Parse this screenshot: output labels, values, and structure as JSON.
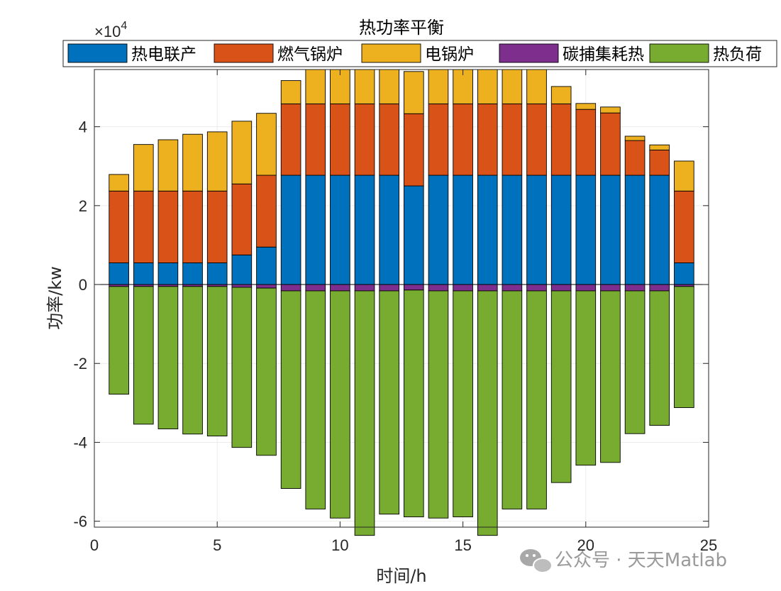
{
  "chart_data": {
    "type": "bar",
    "stacked": true,
    "title": "热功率平衡",
    "xlabel": "时间/h",
    "ylabel": "功率/kw",
    "y_exponent_base": "×10",
    "y_exponent_power": "4",
    "xlim": [
      0,
      25
    ],
    "ylim": [
      -61500,
      54500
    ],
    "y_scale_factor": 10000,
    "xticks": [
      0,
      5,
      10,
      15,
      20,
      25
    ],
    "yticks": [
      -60000,
      -40000,
      -20000,
      0,
      20000,
      40000
    ],
    "ytick_labels": [
      "-6",
      "-4",
      "-2",
      "0",
      "2",
      "4"
    ],
    "grid": true,
    "legend_location": "top-outside",
    "x": [
      1,
      2,
      3,
      4,
      5,
      6,
      7,
      8,
      9,
      10,
      11,
      12,
      13,
      14,
      15,
      16,
      17,
      18,
      19,
      20,
      21,
      22,
      23,
      24
    ],
    "series": [
      {
        "name": "热电联产",
        "color": "#0072BD",
        "values": [
          5500,
          5500,
          5500,
          5500,
          5500,
          7500,
          9500,
          27700,
          27700,
          27700,
          27700,
          27700,
          25000,
          27700,
          27700,
          27700,
          27700,
          27700,
          27700,
          27700,
          27700,
          27700,
          27700,
          5500
        ]
      },
      {
        "name": "燃气锅炉",
        "color": "#D95319",
        "values": [
          18200,
          18200,
          18200,
          18200,
          18200,
          18000,
          18200,
          18100,
          18100,
          18100,
          18100,
          18100,
          18300,
          18100,
          18100,
          18100,
          18100,
          18100,
          18100,
          16700,
          15800,
          8800,
          6400,
          18200
        ]
      },
      {
        "name": "电锅炉",
        "color": "#EDB120",
        "values": [
          4200,
          11800,
          13000,
          14400,
          15000,
          15900,
          15700,
          5900,
          8700,
          8700,
          8700,
          8700,
          10700,
          8700,
          8700,
          8700,
          8700,
          8700,
          4400,
          1500,
          1500,
          1100,
          1300,
          7600
        ]
      },
      {
        "name": "碳捕集耗热",
        "color": "#7E2F8E",
        "values": [
          -500,
          -500,
          -500,
          -500,
          -500,
          -700,
          -900,
          -1600,
          -1600,
          -1600,
          -1600,
          -1600,
          -1400,
          -1600,
          -1600,
          -1600,
          -1600,
          -1600,
          -1600,
          -1600,
          -1600,
          -1600,
          -1600,
          -500
        ]
      },
      {
        "name": "热负荷",
        "color": "#77AC30",
        "values": [
          -27300,
          -34900,
          -36100,
          -37400,
          -37900,
          -40600,
          -42400,
          -50100,
          -55300,
          -57600,
          -62000,
          -56600,
          -57500,
          -57600,
          -57300,
          -62000,
          -55300,
          -55300,
          -48600,
          -44200,
          -43500,
          -36200,
          -34100,
          -30700
        ]
      }
    ]
  },
  "watermark": {
    "text": "公众号 · 天天Matlab"
  }
}
